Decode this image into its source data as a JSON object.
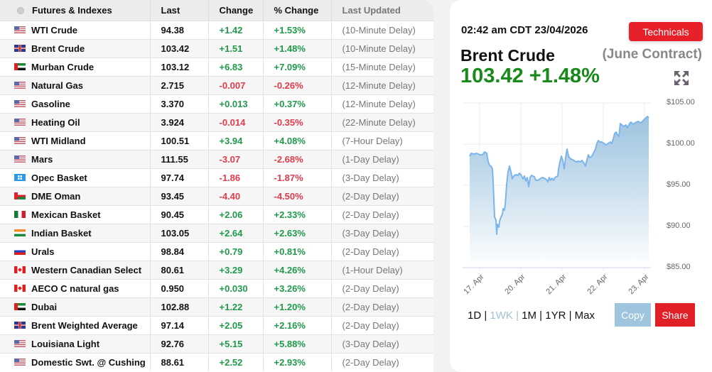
{
  "table": {
    "headers": {
      "name": "Futures & Indexes",
      "last": "Last",
      "change": "Change",
      "pct_change": "% Change",
      "last_updated": "Last Updated"
    },
    "rows": [
      {
        "flag": "us",
        "name": "WTI Crude",
        "last": "94.38",
        "change": "+1.42",
        "pct": "+1.53%",
        "updated": "(10-Minute Delay)",
        "dir": "pos"
      },
      {
        "flag": "uk",
        "name": "Brent Crude",
        "last": "103.42",
        "change": "+1.51",
        "pct": "+1.48%",
        "updated": "(10-Minute Delay)",
        "dir": "pos"
      },
      {
        "flag": "ae",
        "name": "Murban Crude",
        "last": "103.12",
        "change": "+6.83",
        "pct": "+7.09%",
        "updated": "(15-Minute Delay)",
        "dir": "pos"
      },
      {
        "flag": "us",
        "name": "Natural Gas",
        "last": "2.715",
        "change": "-0.007",
        "pct": "-0.26%",
        "updated": "(12-Minute Delay)",
        "dir": "neg"
      },
      {
        "flag": "us",
        "name": "Gasoline",
        "last": "3.370",
        "change": "+0.013",
        "pct": "+0.37%",
        "updated": "(12-Minute Delay)",
        "dir": "pos"
      },
      {
        "flag": "us",
        "name": "Heating Oil",
        "last": "3.924",
        "change": "-0.014",
        "pct": "-0.35%",
        "updated": "(22-Minute Delay)",
        "dir": "neg"
      },
      {
        "flag": "us",
        "name": "WTI Midland",
        "last": "100.51",
        "change": "+3.94",
        "pct": "+4.08%",
        "updated": "(7-Hour Delay)",
        "dir": "pos"
      },
      {
        "flag": "us",
        "name": "Mars",
        "last": "111.55",
        "change": "-3.07",
        "pct": "-2.68%",
        "updated": "(1-Day Delay)",
        "dir": "neg"
      },
      {
        "flag": "opec",
        "name": "Opec Basket",
        "last": "97.74",
        "change": "-1.86",
        "pct": "-1.87%",
        "updated": "(3-Day Delay)",
        "dir": "neg"
      },
      {
        "flag": "om",
        "name": "DME Oman",
        "last": "93.45",
        "change": "-4.40",
        "pct": "-4.50%",
        "updated": "(2-Day Delay)",
        "dir": "neg"
      },
      {
        "flag": "mx",
        "name": "Mexican Basket",
        "last": "90.45",
        "change": "+2.06",
        "pct": "+2.33%",
        "updated": "(2-Day Delay)",
        "dir": "pos"
      },
      {
        "flag": "in",
        "name": "Indian Basket",
        "last": "103.05",
        "change": "+2.64",
        "pct": "+2.63%",
        "updated": "(3-Day Delay)",
        "dir": "pos"
      },
      {
        "flag": "ru",
        "name": "Urals",
        "last": "98.84",
        "change": "+0.79",
        "pct": "+0.81%",
        "updated": "(2-Day Delay)",
        "dir": "pos"
      },
      {
        "flag": "ca",
        "name": "Western Canadian Select",
        "last": "80.61",
        "change": "+3.29",
        "pct": "+4.26%",
        "updated": "(1-Hour Delay)",
        "dir": "pos"
      },
      {
        "flag": "ca",
        "name": "AECO C natural gas",
        "last": "0.950",
        "change": "+0.030",
        "pct": "+3.26%",
        "updated": "(2-Day Delay)",
        "dir": "pos"
      },
      {
        "flag": "ae",
        "name": "Dubai",
        "last": "102.88",
        "change": "+1.22",
        "pct": "+1.20%",
        "updated": "(2-Day Delay)",
        "dir": "pos"
      },
      {
        "flag": "uk",
        "name": "Brent Weighted Average",
        "last": "97.14",
        "change": "+2.05",
        "pct": "+2.16%",
        "updated": "(2-Day Delay)",
        "dir": "pos"
      },
      {
        "flag": "us",
        "name": "Louisiana Light",
        "last": "92.76",
        "change": "+5.15",
        "pct": "+5.88%",
        "updated": "(3-Day Delay)",
        "dir": "pos"
      },
      {
        "flag": "us",
        "name": "Domestic Swt. @ Cushing",
        "last": "88.61",
        "change": "+2.52",
        "pct": "+2.93%",
        "updated": "(2-Day Delay)",
        "dir": "pos"
      }
    ]
  },
  "card": {
    "timestamp": "02:42 am CDT 23/04/2026",
    "technicals_label": "Technicals",
    "instrument": "Brent Crude",
    "contract": "(June Contract)",
    "price_line": "103.42 +1.48%",
    "range_options": [
      {
        "label": "1D",
        "active": false
      },
      {
        "label": "1WK",
        "active": true
      },
      {
        "label": "1M",
        "active": false
      },
      {
        "label": "1YR",
        "active": false
      },
      {
        "label": "Max",
        "active": false
      }
    ],
    "copy_label": "Copy",
    "share_label": "Share",
    "colors": {
      "accent_red": "#e8202a",
      "price_green": "#178a1a",
      "line_blue": "#7cb5ec",
      "copy_blue": "#9ec5dd"
    }
  },
  "chart_data": {
    "type": "area",
    "title": "Brent Crude (June Contract)",
    "xlabel": "",
    "ylabel": "",
    "x_ticks": [
      "17. Apr",
      "20. Apr",
      "21. Apr",
      "22. Apr",
      "23. Apr"
    ],
    "y_ticks": [
      "$85.00",
      "$90.00",
      "$95.00",
      "$100.00",
      "$105.00"
    ],
    "ylim": [
      85,
      105.5
    ],
    "grid": true,
    "legend": "none",
    "series": [
      {
        "name": "Brent Crude",
        "x": [
          "17 Apr 00:00",
          "17 Apr 06:00",
          "17 Apr 12:00",
          "17 Apr 18:00",
          "18 Apr 00:00",
          "18 Apr 06:00",
          "18 Apr 12:00",
          "18 Apr 18:00",
          "20 Apr 00:00",
          "20 Apr 06:00",
          "20 Apr 12:00",
          "20 Apr 18:00",
          "21 Apr 00:00",
          "21 Apr 06:00",
          "21 Apr 12:00",
          "21 Apr 18:00",
          "22 Apr 00:00",
          "22 Apr 06:00",
          "22 Apr 12:00",
          "22 Apr 18:00",
          "23 Apr 00:00",
          "23 Apr 02:42"
        ],
        "values": [
          98.4,
          98.3,
          98.8,
          96.5,
          89.0,
          86.5,
          90.5,
          97.0,
          95.5,
          95.8,
          94.6,
          95.7,
          94.8,
          95.2,
          94.9,
          98.5,
          100.5,
          98.5,
          98.2,
          100.2,
          101.8,
          103.42
        ]
      }
    ]
  }
}
